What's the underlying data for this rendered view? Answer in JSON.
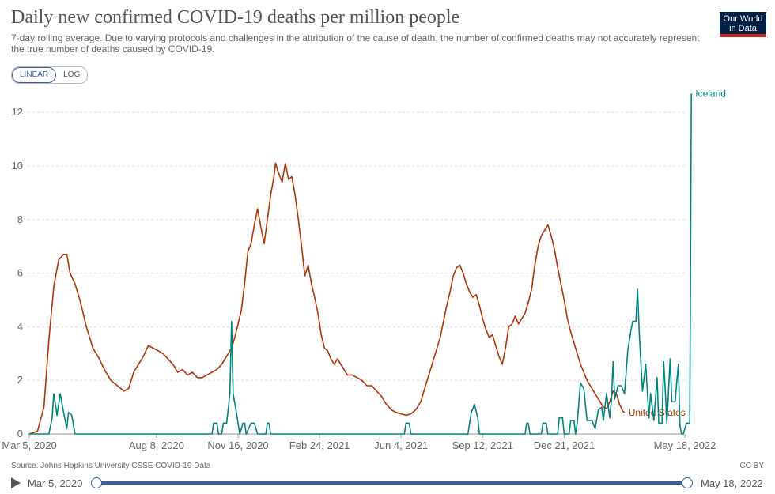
{
  "header": {
    "title": "Daily new confirmed COVID-19 deaths per million people",
    "subtitle": "7-day rolling average. Due to varying protocols and challenges in the attribution of the cause of death, the number of confirmed deaths may not accurately represent the true number of deaths caused by COVID-19.",
    "logo_line1": "Our World",
    "logo_line2": "in Data"
  },
  "scale_toggle": {
    "linear": "LINEAR",
    "log": "LOG",
    "selected": "LINEAR"
  },
  "footer": {
    "source": "Source: Johns Hopkins University CSSE COVID-19 Data",
    "license": "CC BY"
  },
  "timeline": {
    "start": "Mar 5, 2020",
    "end": "May 18, 2022"
  },
  "chart_data": {
    "type": "line",
    "title": "Daily new confirmed COVID-19 deaths per million people",
    "xlabel": "",
    "ylabel": "",
    "ylim": [
      0,
      12.8
    ],
    "yticks": [
      0,
      2,
      4,
      6,
      8,
      10,
      12
    ],
    "xlim": [
      -2,
      804
    ],
    "xticks": [
      {
        "day": 0,
        "label": "Mar 5, 2020"
      },
      {
        "day": 156,
        "label": "Aug 8, 2020"
      },
      {
        "day": 256,
        "label": "Nov 16, 2020"
      },
      {
        "day": 356,
        "label": "Feb 24, 2021"
      },
      {
        "day": 456,
        "label": "Jun 4, 2021"
      },
      {
        "day": 556,
        "label": "Sep 12, 2021"
      },
      {
        "day": 656,
        "label": "Dec 21, 2021"
      },
      {
        "day": 804,
        "label": "May 18, 2022"
      }
    ],
    "series": [
      {
        "name": "United States",
        "color": "#b13507",
        "points": [
          [
            0,
            0
          ],
          [
            10,
            0.1
          ],
          [
            18,
            1
          ],
          [
            24,
            3.5
          ],
          [
            30,
            5.5
          ],
          [
            36,
            6.5
          ],
          [
            42,
            6.7
          ],
          [
            46,
            6.7
          ],
          [
            50,
            6
          ],
          [
            56,
            5.6
          ],
          [
            62,
            5
          ],
          [
            70,
            4
          ],
          [
            78,
            3.2
          ],
          [
            86,
            2.8
          ],
          [
            92,
            2.4
          ],
          [
            100,
            2
          ],
          [
            108,
            1.8
          ],
          [
            116,
            1.6
          ],
          [
            122,
            1.7
          ],
          [
            128,
            2.3
          ],
          [
            134,
            2.6
          ],
          [
            140,
            2.9
          ],
          [
            146,
            3.3
          ],
          [
            152,
            3.2
          ],
          [
            158,
            3.1
          ],
          [
            164,
            3
          ],
          [
            170,
            2.8
          ],
          [
            176,
            2.6
          ],
          [
            182,
            2.3
          ],
          [
            188,
            2.4
          ],
          [
            194,
            2.2
          ],
          [
            200,
            2.3
          ],
          [
            206,
            2.1
          ],
          [
            212,
            2.1
          ],
          [
            218,
            2.2
          ],
          [
            224,
            2.3
          ],
          [
            230,
            2.4
          ],
          [
            236,
            2.6
          ],
          [
            242,
            2.9
          ],
          [
            248,
            3.2
          ],
          [
            252,
            3.6
          ],
          [
            256,
            4.1
          ],
          [
            260,
            4.6
          ],
          [
            264,
            5.6
          ],
          [
            268,
            6.8
          ],
          [
            272,
            7.1
          ],
          [
            276,
            7.8
          ],
          [
            280,
            8.4
          ],
          [
            284,
            7.7
          ],
          [
            288,
            7.1
          ],
          [
            292,
            8
          ],
          [
            296,
            8.9
          ],
          [
            300,
            9.6
          ],
          [
            302,
            10.1
          ],
          [
            306,
            9.7
          ],
          [
            310,
            9.4
          ],
          [
            314,
            10.1
          ],
          [
            318,
            9.5
          ],
          [
            322,
            9.6
          ],
          [
            326,
            8.9
          ],
          [
            330,
            8
          ],
          [
            334,
            7
          ],
          [
            338,
            5.9
          ],
          [
            342,
            6.3
          ],
          [
            346,
            5.6
          ],
          [
            350,
            5.1
          ],
          [
            354,
            4.5
          ],
          [
            358,
            3.7
          ],
          [
            362,
            3.2
          ],
          [
            366,
            3.1
          ],
          [
            370,
            2.8
          ],
          [
            374,
            2.6
          ],
          [
            378,
            2.8
          ],
          [
            382,
            2.6
          ],
          [
            386,
            2.4
          ],
          [
            390,
            2.2
          ],
          [
            396,
            2.2
          ],
          [
            402,
            2.1
          ],
          [
            408,
            2
          ],
          [
            414,
            1.8
          ],
          [
            420,
            1.8
          ],
          [
            426,
            1.6
          ],
          [
            432,
            1.4
          ],
          [
            438,
            1.1
          ],
          [
            444,
            0.9
          ],
          [
            450,
            0.8
          ],
          [
            456,
            0.75
          ],
          [
            462,
            0.7
          ],
          [
            468,
            0.75
          ],
          [
            474,
            0.9
          ],
          [
            480,
            1.2
          ],
          [
            486,
            1.8
          ],
          [
            492,
            2.4
          ],
          [
            498,
            3
          ],
          [
            504,
            3.6
          ],
          [
            508,
            4.2
          ],
          [
            512,
            4.8
          ],
          [
            516,
            5.3
          ],
          [
            520,
            5.9
          ],
          [
            524,
            6.2
          ],
          [
            528,
            6.3
          ],
          [
            532,
            6
          ],
          [
            536,
            5.6
          ],
          [
            540,
            5.3
          ],
          [
            544,
            5.1
          ],
          [
            548,
            5.2
          ],
          [
            552,
            4.8
          ],
          [
            556,
            4.3
          ],
          [
            560,
            3.9
          ],
          [
            564,
            3.6
          ],
          [
            568,
            3.7
          ],
          [
            572,
            3.3
          ],
          [
            576,
            2.9
          ],
          [
            580,
            2.6
          ],
          [
            584,
            3.2
          ],
          [
            588,
            4
          ],
          [
            592,
            4.1
          ],
          [
            596,
            4.4
          ],
          [
            600,
            4.1
          ],
          [
            604,
            4.3
          ],
          [
            608,
            4.5
          ],
          [
            612,
            4.9
          ],
          [
            616,
            5.4
          ],
          [
            620,
            6.3
          ],
          [
            624,
            7
          ],
          [
            628,
            7.4
          ],
          [
            632,
            7.6
          ],
          [
            636,
            7.8
          ],
          [
            640,
            7.4
          ],
          [
            644,
            6.9
          ],
          [
            648,
            6.2
          ],
          [
            652,
            5.6
          ],
          [
            656,
            5
          ],
          [
            660,
            4.3
          ],
          [
            664,
            3.8
          ],
          [
            668,
            3.4
          ],
          [
            672,
            3
          ],
          [
            676,
            2.6
          ],
          [
            680,
            2.3
          ],
          [
            684,
            2
          ],
          [
            688,
            1.8
          ],
          [
            692,
            1.6
          ],
          [
            696,
            1.4
          ],
          [
            700,
            1.2
          ],
          [
            704,
            1
          ],
          [
            708,
            0.95
          ],
          [
            712,
            1.2
          ],
          [
            716,
            1.6
          ],
          [
            720,
            1.5
          ],
          [
            724,
            1.1
          ],
          [
            728,
            0.85
          ],
          [
            730,
            0.8
          ]
        ]
      },
      {
        "name": "Iceland",
        "color": "#00847e",
        "points": [
          [
            0,
            0
          ],
          [
            24,
            0
          ],
          [
            28,
            0.6
          ],
          [
            30,
            1.5
          ],
          [
            34,
            0.7
          ],
          [
            38,
            1.5
          ],
          [
            42,
            0.8
          ],
          [
            46,
            0.2
          ],
          [
            48,
            0.8
          ],
          [
            52,
            0.7
          ],
          [
            56,
            0
          ],
          [
            224,
            0
          ],
          [
            226,
            0.4
          ],
          [
            230,
            0.4
          ],
          [
            232,
            0
          ],
          [
            236,
            0
          ],
          [
            238,
            0.4
          ],
          [
            242,
            0.4
          ],
          [
            246,
            1.5
          ],
          [
            248,
            4.2
          ],
          [
            250,
            1.5
          ],
          [
            254,
            0.8
          ],
          [
            258,
            0
          ],
          [
            262,
            0.4
          ],
          [
            264,
            0.4
          ],
          [
            266,
            0
          ],
          [
            272,
            0.4
          ],
          [
            276,
            0.4
          ],
          [
            280,
            0
          ],
          [
            290,
            0
          ],
          [
            292,
            0.4
          ],
          [
            294,
            0.4
          ],
          [
            296,
            0
          ],
          [
            460,
            0
          ],
          [
            462,
            0.4
          ],
          [
            466,
            0.4
          ],
          [
            468,
            0
          ],
          [
            538,
            0
          ],
          [
            542,
            0.8
          ],
          [
            546,
            1.1
          ],
          [
            550,
            0.6
          ],
          [
            552,
            0
          ],
          [
            608,
            0
          ],
          [
            610,
            0.4
          ],
          [
            612,
            0.4
          ],
          [
            614,
            0
          ],
          [
            628,
            0
          ],
          [
            630,
            0.4
          ],
          [
            634,
            0.4
          ],
          [
            636,
            0
          ],
          [
            648,
            0
          ],
          [
            650,
            0.6
          ],
          [
            654,
            0.6
          ],
          [
            656,
            0
          ],
          [
            662,
            0
          ],
          [
            664,
            0.5
          ],
          [
            668,
            0.5
          ],
          [
            670,
            0
          ],
          [
            672,
            0.4
          ],
          [
            676,
            1.9
          ],
          [
            680,
            1.7
          ],
          [
            684,
            0.5
          ],
          [
            690,
            0.5
          ],
          [
            694,
            0.2
          ],
          [
            698,
            0.9
          ],
          [
            702,
            1
          ],
          [
            704,
            0.5
          ],
          [
            708,
            1.5
          ],
          [
            712,
            0.6
          ],
          [
            714,
            1.3
          ],
          [
            716,
            2.7
          ],
          [
            718,
            1.3
          ],
          [
            722,
            1.8
          ],
          [
            726,
            1.8
          ],
          [
            730,
            1.5
          ],
          [
            732,
            2.3
          ],
          [
            734,
            3.1
          ],
          [
            738,
            3.9
          ],
          [
            740,
            4.2
          ],
          [
            744,
            4.2
          ],
          [
            746,
            5.4
          ],
          [
            748,
            3.8
          ],
          [
            752,
            1.6
          ],
          [
            756,
            2.6
          ],
          [
            760,
            0.6
          ],
          [
            762,
            1.5
          ],
          [
            766,
            0.5
          ],
          [
            770,
            2.1
          ],
          [
            772,
            0.4
          ],
          [
            776,
            0.4
          ],
          [
            778,
            2.7
          ],
          [
            780,
            1.6
          ],
          [
            782,
            0.4
          ],
          [
            786,
            2.8
          ],
          [
            788,
            1.2
          ],
          [
            792,
            1.2
          ],
          [
            796,
            2.6
          ],
          [
            798,
            0.3
          ],
          [
            800,
            0
          ],
          [
            802,
            0
          ],
          [
            806,
            0.4
          ],
          [
            808,
            0.4
          ],
          [
            810,
            0.4
          ],
          [
            812,
            12.7
          ]
        ]
      }
    ]
  }
}
